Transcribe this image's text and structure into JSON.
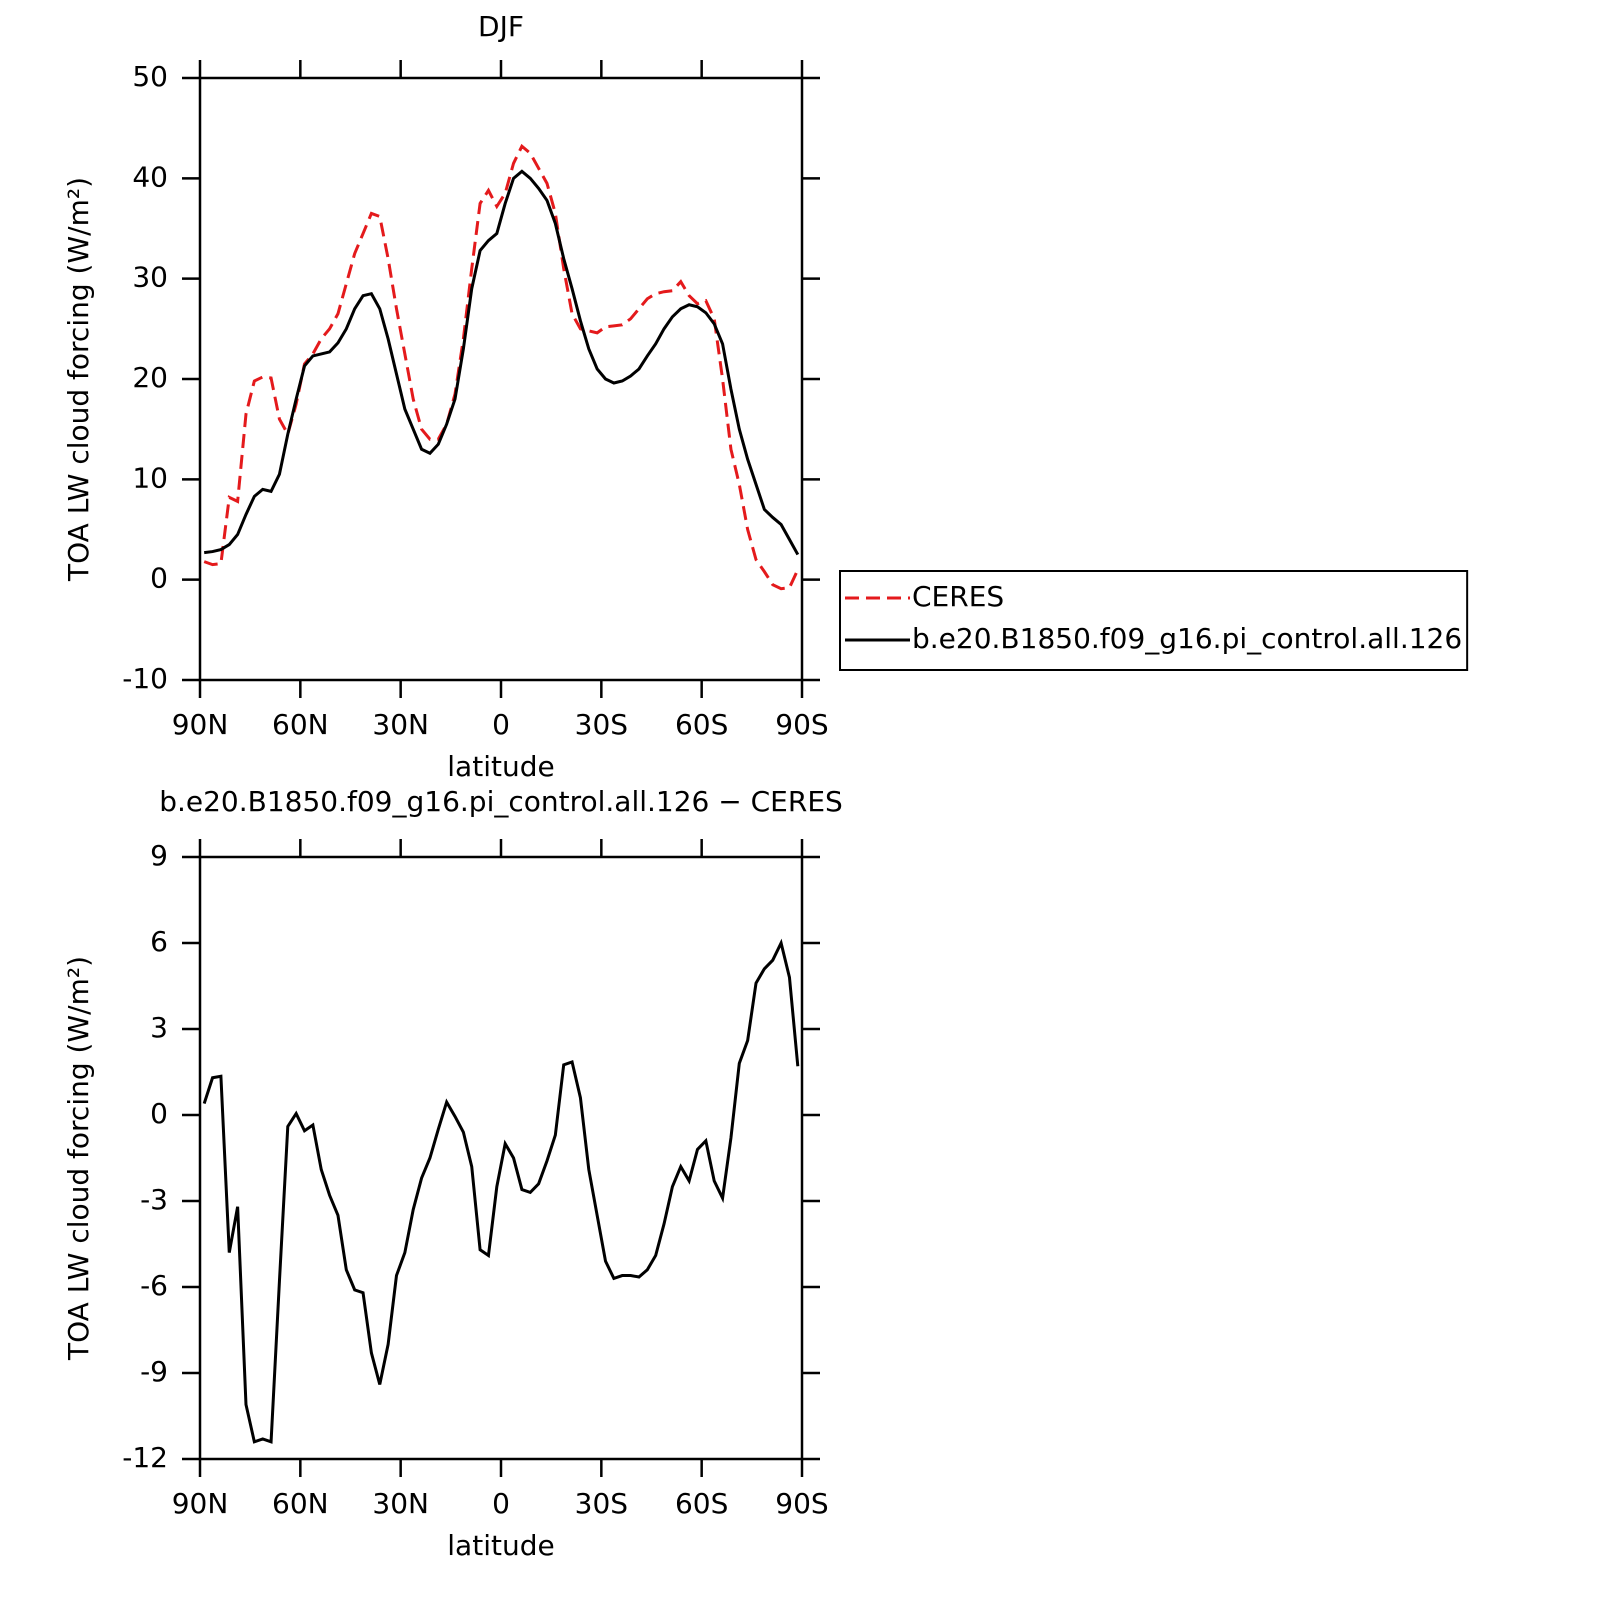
{
  "chart_data": [
    {
      "type": "line",
      "title": "DJF",
      "x_label": "latitude",
      "y_label": "TOA LW cloud forcing (W/m²)",
      "x": [
        88.75,
        86.25,
        83.75,
        81.25,
        78.75,
        76.25,
        73.75,
        71.25,
        68.75,
        66.25,
        63.75,
        61.25,
        58.75,
        56.25,
        53.75,
        51.25,
        48.75,
        46.25,
        43.75,
        41.25,
        38.75,
        36.25,
        33.75,
        31.25,
        28.75,
        26.25,
        23.75,
        21.25,
        18.75,
        16.25,
        13.75,
        11.25,
        8.75,
        6.25,
        3.75,
        1.25,
        -1.25,
        -3.75,
        -6.25,
        -8.75,
        -11.25,
        -13.75,
        -16.25,
        -18.75,
        -21.25,
        -23.75,
        -26.25,
        -28.75,
        -31.25,
        -33.75,
        -36.25,
        -38.75,
        -41.25,
        -43.75,
        -46.25,
        -48.75,
        -51.25,
        -53.75,
        -56.25,
        -58.75,
        -61.25,
        -63.75,
        -66.25,
        -68.75,
        -71.25,
        -73.75,
        -76.25,
        -78.75,
        -81.25,
        -83.75,
        -86.25,
        -88.75
      ],
      "series": [
        {
          "name": "CERES",
          "color": "#e41a1c",
          "dash": true,
          "values": [
            1.8,
            1.5,
            1.6,
            8.2,
            7.8,
            16.5,
            19.8,
            20.2,
            20.1,
            16.0,
            14.5,
            17.5,
            21.5,
            22.5,
            24.0,
            25.0,
            26.5,
            29.5,
            32.5,
            34.5,
            36.5,
            36.2,
            32.0,
            27.0,
            22.5,
            18.0,
            15.0,
            14.0,
            14.0,
            15.5,
            18.5,
            24.0,
            31.0,
            37.5,
            38.8,
            37.2,
            38.5,
            41.5,
            43.2,
            42.5,
            41.0,
            39.5,
            36.5,
            31.0,
            26.5,
            25.0,
            24.8,
            24.6,
            25.2,
            25.3,
            25.4,
            26.0,
            27.0,
            28.0,
            28.5,
            28.7,
            28.8,
            29.7,
            28.3,
            27.5,
            27.8,
            26.0,
            20.0,
            13.0,
            9.5,
            5.0,
            2.0,
            0.8,
            -0.5,
            -0.9,
            -0.8,
            1.0
          ]
        },
        {
          "name": "b.e20.B1850.f09_g16.pi_control.all.126",
          "color": "#000000",
          "dash": false,
          "values": [
            2.7,
            2.8,
            3.0,
            3.5,
            4.5,
            6.5,
            8.3,
            9.0,
            8.8,
            10.5,
            14.5,
            18.0,
            21.3,
            22.3,
            22.5,
            22.7,
            23.6,
            25.0,
            27.0,
            28.3,
            28.5,
            27.0,
            24.0,
            20.5,
            17.0,
            15.0,
            13.0,
            12.6,
            13.5,
            15.5,
            18.0,
            23.0,
            29.0,
            32.8,
            33.8,
            34.5,
            37.5,
            40.0,
            40.7,
            40.0,
            39.0,
            37.8,
            35.5,
            32.0,
            29.0,
            25.8,
            23.0,
            21.0,
            20.0,
            19.6,
            19.8,
            20.3,
            21.0,
            22.3,
            23.5,
            25.0,
            26.2,
            27.0,
            27.4,
            27.2,
            26.6,
            25.5,
            23.5,
            19.0,
            15.0,
            12.0,
            9.5,
            7.0,
            6.2,
            5.5,
            4.0,
            2.5
          ]
        }
      ],
      "xlim": [
        90,
        -90
      ],
      "xticks": [
        {
          "value": 90,
          "label": "90N"
        },
        {
          "value": 60,
          "label": "60N"
        },
        {
          "value": 30,
          "label": "30N"
        },
        0,
        {
          "value": -30,
          "label": "30S"
        },
        {
          "value": -60,
          "label": "60S"
        },
        {
          "value": -90,
          "label": "90S"
        }
      ],
      "ylim": [
        -10,
        50
      ],
      "yticks": [
        -10,
        0,
        10,
        20,
        30,
        40,
        50
      ],
      "legend": "right"
    },
    {
      "type": "line",
      "title": "b.e20.B1850.f09_g16.pi_control.all.126 − CERES",
      "x_label": "latitude",
      "y_label": "TOA LW cloud forcing (W/m²)",
      "x": [
        88.75,
        86.25,
        83.75,
        81.25,
        78.75,
        76.25,
        73.75,
        71.25,
        68.75,
        66.25,
        63.75,
        61.25,
        58.75,
        56.25,
        53.75,
        51.25,
        48.75,
        46.25,
        43.75,
        41.25,
        38.75,
        36.25,
        33.75,
        31.25,
        28.75,
        26.25,
        23.75,
        21.25,
        18.75,
        16.25,
        13.75,
        11.25,
        8.75,
        6.25,
        3.75,
        1.25,
        -1.25,
        -3.75,
        -6.25,
        -8.75,
        -11.25,
        -13.75,
        -16.25,
        -18.75,
        -21.25,
        -23.75,
        -26.25,
        -28.75,
        -31.25,
        -33.75,
        -36.25,
        -38.75,
        -41.25,
        -43.75,
        -46.25,
        -48.75,
        -51.25,
        -53.75,
        -56.25,
        -58.75,
        -61.25,
        -63.75,
        -66.25,
        -68.75,
        -71.25,
        -73.75,
        -76.25,
        -78.75,
        -81.25,
        -83.75,
        -86.25,
        -88.75
      ],
      "color": "#000000",
      "values": [
        0.4,
        1.3,
        1.35,
        -4.8,
        -3.2,
        -10.1,
        -11.4,
        -11.3,
        -11.4,
        -5.8,
        -0.4,
        0.05,
        -0.55,
        -0.35,
        -1.9,
        -2.8,
        -3.5,
        -5.4,
        -6.1,
        -6.2,
        -8.3,
        -9.4,
        -8.0,
        -5.6,
        -4.8,
        -3.3,
        -2.2,
        -1.5,
        -0.5,
        0.45,
        -0.05,
        -0.6,
        -1.8,
        -4.7,
        -4.9,
        -2.5,
        -1.0,
        -1.5,
        -2.6,
        -2.7,
        -2.4,
        -1.6,
        -0.7,
        1.75,
        1.85,
        0.6,
        -1.9,
        -3.5,
        -5.1,
        -5.7,
        -5.6,
        -5.6,
        -5.65,
        -5.4,
        -4.9,
        -3.8,
        -2.5,
        -1.8,
        -2.3,
        -1.2,
        -0.9,
        -2.3,
        -2.9,
        -0.8,
        1.8,
        2.6,
        4.6,
        5.1,
        5.4,
        6.0,
        4.8,
        1.7
      ],
      "xlim": [
        90,
        -90
      ],
      "xticks": [
        {
          "value": 90,
          "label": "90N"
        },
        {
          "value": 60,
          "label": "60N"
        },
        {
          "value": 30,
          "label": "30N"
        },
        0,
        {
          "value": -30,
          "label": "30S"
        },
        {
          "value": -60,
          "label": "60S"
        },
        {
          "value": -90,
          "label": "90S"
        }
      ],
      "ylim": [
        -12,
        9
      ],
      "yticks": [
        -12,
        -9,
        -6,
        -3,
        0,
        3,
        6,
        9
      ]
    }
  ]
}
